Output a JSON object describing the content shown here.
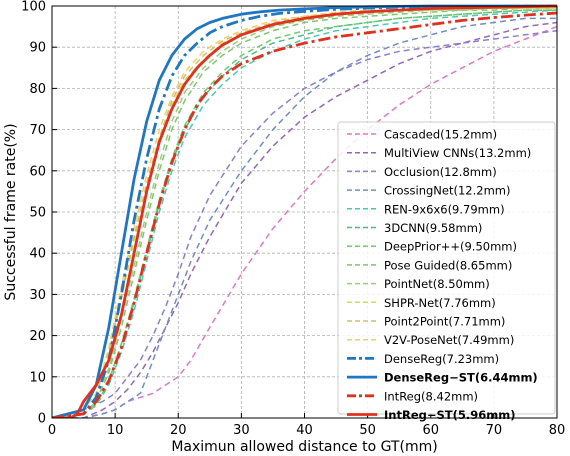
{
  "chart_data": {
    "type": "line",
    "xlabel": "Maximun allowed distance to GT(mm)",
    "ylabel": "Successful frame rate(%)",
    "xlim": [
      0,
      80
    ],
    "ylim": [
      0,
      100
    ],
    "xticks": [
      "0",
      "10",
      "20",
      "30",
      "40",
      "50",
      "60",
      "70",
      "80"
    ],
    "yticks": [
      "0",
      "10",
      "20",
      "30",
      "40",
      "50",
      "60",
      "70",
      "80",
      "90",
      "100"
    ],
    "grid": true,
    "legend_position": "bottom-right",
    "series": [
      {
        "name": "Cascaded(15.2mm)",
        "color": "#e377c2",
        "style": "dashed",
        "width": 1.5,
        "bold": false,
        "x": [
          0,
          5,
          8,
          10,
          12,
          14,
          16,
          18,
          20,
          22,
          25,
          30,
          35,
          40,
          45,
          50,
          55,
          60,
          65,
          70,
          75,
          80
        ],
        "y": [
          0,
          0,
          1,
          2,
          4,
          5,
          6,
          8,
          10,
          14,
          22,
          35,
          46,
          55,
          63,
          70,
          76,
          81,
          85,
          89,
          92,
          95
        ]
      },
      {
        "name": "MultiView CNNs(13.2mm)",
        "color": "#9467bd",
        "style": "dashed",
        "width": 1.5,
        "bold": false,
        "x": [
          0,
          5,
          8,
          10,
          12,
          14,
          16,
          18,
          20,
          22,
          25,
          30,
          35,
          40,
          45,
          50,
          55,
          60,
          65,
          70,
          75,
          80
        ],
        "y": [
          0,
          0,
          2,
          4,
          7,
          11,
          16,
          22,
          28,
          35,
          44,
          57,
          66,
          73,
          78,
          82,
          86,
          89,
          91,
          93,
          95,
          96
        ]
      },
      {
        "name": "Occlusion(12.8mm)",
        "color": "#8c7ed0",
        "style": "dashed",
        "width": 1.5,
        "bold": false,
        "x": [
          0,
          5,
          8,
          10,
          12,
          14,
          16,
          18,
          20,
          22,
          25,
          30,
          35,
          40,
          45,
          50,
          55,
          60,
          65,
          70,
          75,
          80
        ],
        "y": [
          0,
          2,
          4,
          6,
          10,
          14,
          20,
          27,
          35,
          44,
          54,
          66,
          74,
          80,
          84,
          87,
          89,
          90,
          91,
          92,
          93,
          94
        ]
      },
      {
        "name": "CrossingNet(12.2mm)",
        "color": "#6f8fc4",
        "style": "dashed",
        "width": 1.5,
        "bold": false,
        "x": [
          0,
          5,
          8,
          10,
          12,
          14,
          16,
          18,
          20,
          22,
          25,
          30,
          35,
          40,
          45,
          50,
          55,
          60,
          65,
          70,
          75,
          80
        ],
        "y": [
          0,
          0,
          1,
          2,
          4,
          6,
          14,
          22,
          30,
          38,
          48,
          60,
          70,
          78,
          84,
          88,
          91,
          93,
          95,
          96,
          97,
          97
        ]
      },
      {
        "name": "REN-9x6x6(9.79mm)",
        "color": "#48c9b0",
        "style": "dashed",
        "width": 1.5,
        "bold": false,
        "x": [
          0,
          5,
          7,
          9,
          11,
          13,
          15,
          17,
          19,
          21,
          24,
          27,
          30,
          35,
          40,
          45,
          50,
          55,
          60,
          65,
          70,
          75,
          80
        ],
        "y": [
          0,
          1,
          3,
          8,
          16,
          26,
          38,
          50,
          60,
          68,
          76,
          81,
          85,
          89,
          92,
          94,
          95,
          96,
          97,
          97.5,
          98,
          98.5,
          99
        ]
      },
      {
        "name": "3DCNN(9.58mm)",
        "color": "#52b788",
        "style": "dashed",
        "width": 1.5,
        "bold": false,
        "x": [
          0,
          5,
          7,
          9,
          11,
          13,
          15,
          17,
          19,
          21,
          24,
          27,
          30,
          35,
          40,
          45,
          50,
          55,
          60,
          65,
          70,
          75,
          80
        ],
        "y": [
          0,
          1,
          3,
          9,
          18,
          28,
          40,
          52,
          62,
          70,
          78,
          83,
          87,
          91,
          93,
          95,
          96,
          97,
          97.5,
          98,
          98.5,
          99,
          99
        ]
      },
      {
        "name": "DeepPrior++(9.50mm)",
        "color": "#6ccf6c",
        "style": "dashed",
        "width": 1.5,
        "bold": false,
        "x": [
          0,
          5,
          7,
          9,
          11,
          13,
          15,
          17,
          19,
          21,
          24,
          27,
          30,
          35,
          40,
          45,
          50,
          55,
          60,
          65,
          70,
          75,
          80
        ],
        "y": [
          0,
          1,
          3,
          9,
          18,
          29,
          41,
          53,
          63,
          71,
          79,
          84,
          88,
          92,
          94,
          95,
          96,
          97,
          97.5,
          98,
          98.5,
          99,
          99
        ]
      },
      {
        "name": "Pose Guided(8.65mm)",
        "color": "#7fc76e",
        "style": "dashed",
        "width": 1.5,
        "bold": false,
        "x": [
          0,
          5,
          7,
          9,
          11,
          13,
          15,
          17,
          19,
          21,
          24,
          27,
          30,
          35,
          40,
          45,
          50,
          55,
          60,
          65,
          70,
          75,
          80
        ],
        "y": [
          0,
          1,
          4,
          11,
          22,
          35,
          48,
          60,
          70,
          77,
          84,
          88,
          91,
          94,
          96,
          97,
          97.5,
          98,
          98.5,
          99,
          99,
          99.5,
          99.5
        ]
      },
      {
        "name": "PointNet(8.50mm)",
        "color": "#98d07a",
        "style": "dashed",
        "width": 1.5,
        "bold": false,
        "x": [
          0,
          5,
          7,
          9,
          11,
          13,
          15,
          17,
          19,
          21,
          24,
          27,
          30,
          35,
          40,
          45,
          50,
          55,
          60,
          65,
          70,
          75,
          80
        ],
        "y": [
          0,
          1,
          4,
          12,
          24,
          37,
          50,
          62,
          72,
          79,
          85,
          89,
          92,
          95,
          96.5,
          97.5,
          98,
          98.5,
          99,
          99,
          99.5,
          99.5,
          99.5
        ]
      },
      {
        "name": "SHPR-Net(7.76mm)",
        "color": "#c8df5a",
        "style": "dashed",
        "width": 1.5,
        "bold": false,
        "x": [
          0,
          5,
          7,
          9,
          11,
          13,
          15,
          17,
          19,
          21,
          24,
          27,
          30,
          35,
          40,
          45,
          50,
          55,
          60,
          65,
          70,
          75,
          80
        ],
        "y": [
          0,
          2,
          6,
          15,
          29,
          43,
          56,
          67,
          76,
          82,
          87,
          91,
          93,
          95.5,
          97,
          98,
          98.5,
          99,
          99,
          99.5,
          99.5,
          99.5,
          99.5
        ]
      },
      {
        "name": "Point2Point(7.71mm)",
        "color": "#d9b87a",
        "style": "dashed",
        "width": 1.5,
        "bold": false,
        "x": [
          0,
          5,
          7,
          9,
          11,
          13,
          15,
          17,
          19,
          21,
          24,
          27,
          30,
          35,
          40,
          45,
          50,
          55,
          60,
          65,
          70,
          75,
          80
        ],
        "y": [
          0,
          2,
          6,
          16,
          30,
          44,
          57,
          68,
          77,
          83,
          88,
          91.5,
          93.5,
          96,
          97.5,
          98,
          98.5,
          99,
          99,
          99.5,
          99.5,
          99.5,
          99.5
        ]
      },
      {
        "name": "V2V-PoseNet(7.49mm)",
        "color": "#f0d060",
        "style": "dashed",
        "width": 1.5,
        "bold": false,
        "x": [
          0,
          5,
          7,
          9,
          11,
          13,
          15,
          17,
          19,
          21,
          24,
          27,
          30,
          35,
          40,
          45,
          50,
          55,
          60,
          65,
          70,
          75,
          80
        ],
        "y": [
          0,
          2,
          6,
          17,
          32,
          46,
          59,
          70,
          78,
          84,
          89,
          92,
          94,
          96.5,
          97.5,
          98.5,
          99,
          99,
          99.5,
          99.5,
          99.5,
          99.5,
          99.5
        ]
      },
      {
        "name": "DenseReg(7.23mm)",
        "color": "#1f77c4",
        "style": "dashdot",
        "width": 2.8,
        "bold": false,
        "x": [
          0,
          5,
          7,
          9,
          11,
          13,
          15,
          17,
          19,
          21,
          23,
          25,
          27,
          30,
          33,
          36,
          40,
          45,
          50,
          55,
          60,
          70,
          80
        ],
        "y": [
          0,
          1,
          5,
          14,
          30,
          48,
          63,
          75,
          83,
          88,
          91,
          93.5,
          95,
          96.5,
          97.5,
          98.2,
          98.7,
          99.2,
          99.5,
          99.7,
          99.8,
          99.9,
          100
        ]
      },
      {
        "name": "DenseReg−ST(6.44mm)",
        "color": "#1f77c4",
        "style": "solid",
        "width": 2.8,
        "bold": true,
        "x": [
          0,
          5,
          7,
          9,
          11,
          13,
          15,
          17,
          19,
          21,
          23,
          25,
          27,
          30,
          33,
          36,
          40,
          45,
          50,
          55,
          60,
          70,
          80
        ],
        "y": [
          0,
          2,
          8,
          22,
          40,
          58,
          72,
          82,
          88,
          92,
          94.5,
          96,
          97,
          98,
          98.6,
          99,
          99.3,
          99.6,
          99.8,
          99.9,
          100,
          100,
          100
        ]
      },
      {
        "name": "IntReg(8.42mm)",
        "color": "#e0301e",
        "style": "dashdot",
        "width": 2.8,
        "bold": false,
        "x": [
          0,
          5,
          7,
          9,
          11,
          13,
          15,
          17,
          19,
          21,
          23,
          25,
          27,
          30,
          35,
          40,
          45,
          50,
          55,
          60,
          65,
          70,
          75,
          80
        ],
        "y": [
          0,
          1,
          4,
          9,
          17,
          28,
          40,
          52,
          62,
          70,
          76,
          80,
          83,
          86,
          89,
          91,
          92.5,
          93.5,
          94.5,
          95.5,
          96.5,
          97.2,
          97.8,
          98.3
        ]
      },
      {
        "name": "IntReg−ST(5.96mm)",
        "color": "#e0301e",
        "style": "solid",
        "width": 2.8,
        "bold": true,
        "x": [
          0,
          3,
          4,
          5,
          7,
          9,
          11,
          13,
          15,
          17,
          19,
          21,
          23,
          25,
          27,
          30,
          35,
          40,
          45,
          50,
          55,
          60,
          70,
          80
        ],
        "y": [
          0,
          0,
          1,
          4,
          8,
          14,
          25,
          40,
          55,
          67,
          75,
          81,
          85,
          88,
          90.5,
          93,
          95.5,
          97,
          98,
          98.6,
          99,
          99.4,
          99.7,
          100
        ]
      }
    ]
  }
}
